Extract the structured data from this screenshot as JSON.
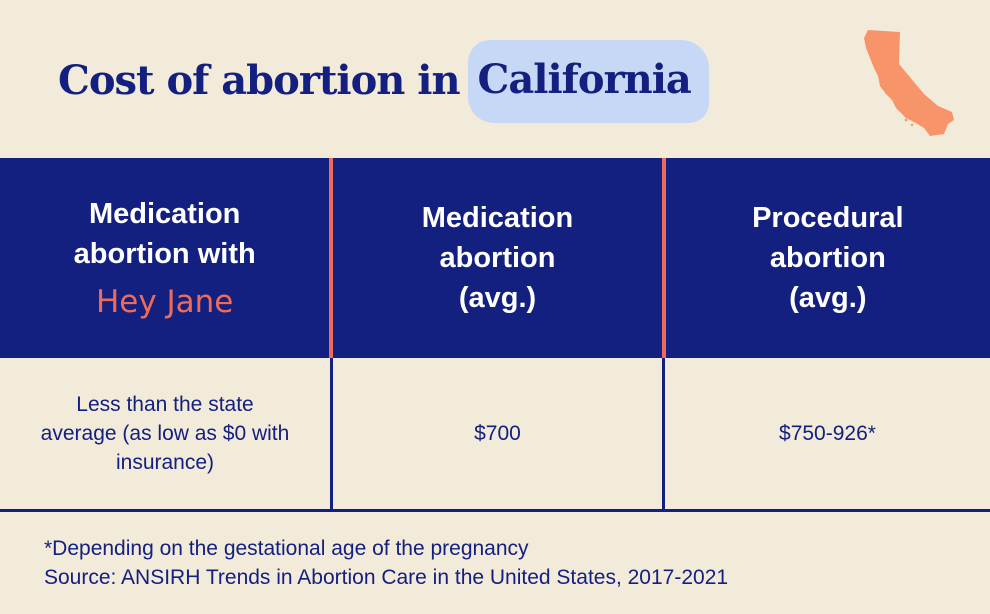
{
  "title": {
    "lead": "Cost of abortion in",
    "highlight": "California"
  },
  "colors": {
    "background": "#f3ebda",
    "navy": "#13207f",
    "coral": "#ec6b5e",
    "highlight": "#c7d8f7",
    "map": "#f7946a"
  },
  "icons": {
    "state_map": "california-map-icon"
  },
  "table": {
    "headers": [
      {
        "line1": "Medication",
        "line2": "abortion with",
        "brand": "Hey Jane"
      },
      {
        "line1": "Medication",
        "line2": "abortion",
        "line3": "(avg.)"
      },
      {
        "line1": "Procedural",
        "line2": "abortion",
        "line3": "(avg.)"
      }
    ],
    "row": [
      "Less than the state average (as low as $0 with insurance)",
      "$700",
      "$750-926*"
    ]
  },
  "footnotes": {
    "note": "*Depending on the gestational age of the pregnancy",
    "source": "Source: ANSIRH Trends in Abortion Care in the United States, 2017-2021"
  }
}
